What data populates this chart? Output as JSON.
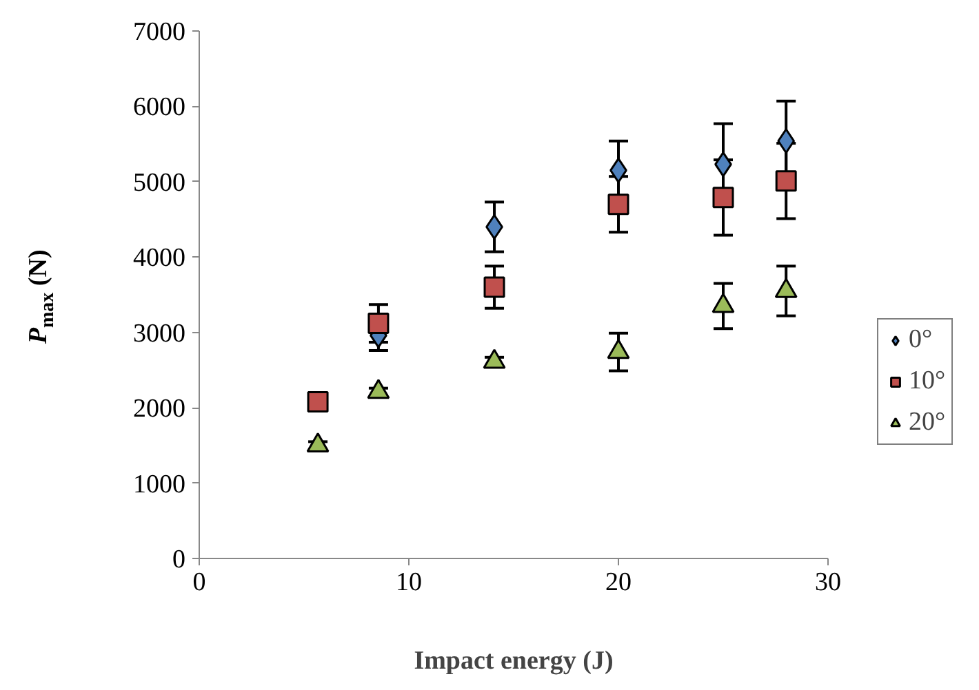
{
  "chart_data": {
    "type": "scatter",
    "xlabel": "Impact energy (J)",
    "ylabel": "P$_{max}$ (N)",
    "x": [
      5.66,
      8.55,
      14.08,
      20,
      25,
      28
    ],
    "xlim": [
      0,
      30
    ],
    "xticks": [
      0,
      10,
      20,
      30
    ],
    "ylim": [
      0,
      7000
    ],
    "yticks": [
      0,
      1000,
      2000,
      3000,
      4000,
      5000,
      6000,
      7000
    ],
    "grid": false,
    "legend": "right",
    "series": [
      {
        "name": "0°",
        "color": "#4f81bd",
        "marker": "diamond",
        "values": [
          null,
          2960,
          4400,
          5150,
          5230,
          5540
        ],
        "errors": [
          null,
          200,
          330,
          390,
          540,
          530
        ]
      },
      {
        "name": "10°",
        "color": "#c0504d",
        "marker": "square",
        "values": [
          2080,
          3120,
          3600,
          4700,
          4790,
          5010
        ],
        "errors": [
          null,
          250,
          280,
          370,
          500,
          500
        ]
      },
      {
        "name": "20°",
        "color": "#9bbb59",
        "marker": "triangle",
        "values": [
          1500,
          2210,
          2610,
          2740,
          3350,
          3550
        ],
        "errors": [
          50,
          50,
          60,
          250,
          300,
          330
        ]
      }
    ]
  }
}
